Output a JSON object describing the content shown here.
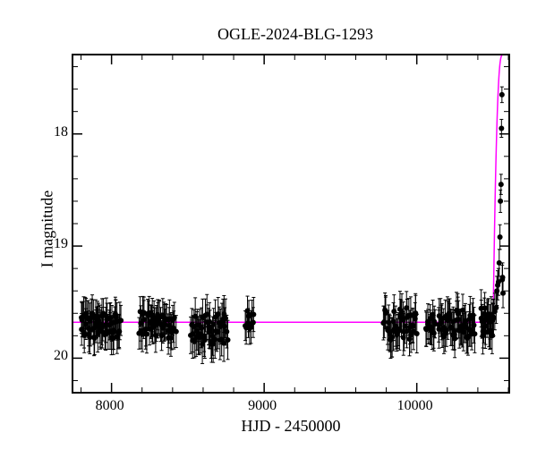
{
  "chart": {
    "type": "scatter-errorbar-with-line",
    "title": "OGLE-2024-BLG-1293",
    "xlabel": "HJD - 2450000",
    "ylabel": "I magnitude",
    "xlim": [
      7750,
      10600
    ],
    "ylim": [
      20.3,
      17.3
    ],
    "xticks": [
      8000,
      9000,
      10000
    ],
    "xtick_minor_step": 200,
    "yticks": [
      18,
      19,
      20
    ],
    "ytick_minor_step": 0.2,
    "background_color": "#ffffff",
    "axis_color": "#000000",
    "tick_fontsize": 16,
    "label_fontsize": 18,
    "title_fontsize": 18,
    "model_line": {
      "color": "#ff00ff",
      "width": 1.5,
      "baseline_mag": 19.68,
      "peak_x": 10560,
      "peak_mag": 17.3,
      "rise_start_x": 10500
    },
    "data_points": {
      "marker_color": "#000000",
      "marker_size": 3,
      "errorbar_color": "#000000",
      "errorbar_width": 1,
      "clusters": [
        {
          "x_start": 7800,
          "x_end": 8060,
          "n": 65,
          "mag_mean": 19.72,
          "mag_scatter": 0.12,
          "err": 0.15
        },
        {
          "x_start": 8180,
          "x_end": 8420,
          "n": 50,
          "mag_mean": 19.7,
          "mag_scatter": 0.12,
          "err": 0.15
        },
        {
          "x_start": 8520,
          "x_end": 8760,
          "n": 50,
          "mag_mean": 19.74,
          "mag_scatter": 0.14,
          "err": 0.16
        },
        {
          "x_start": 8880,
          "x_end": 8930,
          "n": 10,
          "mag_mean": 19.65,
          "mag_scatter": 0.1,
          "err": 0.14
        },
        {
          "x_start": 9780,
          "x_end": 10000,
          "n": 45,
          "mag_mean": 19.7,
          "mag_scatter": 0.15,
          "err": 0.16
        },
        {
          "x_start": 10060,
          "x_end": 10120,
          "n": 15,
          "mag_mean": 19.7,
          "mag_scatter": 0.1,
          "err": 0.14
        },
        {
          "x_start": 10140,
          "x_end": 10380,
          "n": 50,
          "mag_mean": 19.7,
          "mag_scatter": 0.13,
          "err": 0.15
        },
        {
          "x_start": 10420,
          "x_end": 10510,
          "n": 25,
          "mag_mean": 19.68,
          "mag_scatter": 0.13,
          "err": 0.15
        }
      ],
      "event_points": [
        {
          "x": 10520,
          "y": 19.55,
          "err": 0.14
        },
        {
          "x": 10525,
          "y": 19.4,
          "err": 0.13
        },
        {
          "x": 10530,
          "y": 19.35,
          "err": 0.13
        },
        {
          "x": 10535,
          "y": 19.32,
          "err": 0.12
        },
        {
          "x": 10540,
          "y": 19.15,
          "err": 0.12
        },
        {
          "x": 10545,
          "y": 18.92,
          "err": 0.11
        },
        {
          "x": 10548,
          "y": 18.6,
          "err": 0.1
        },
        {
          "x": 10552,
          "y": 18.45,
          "err": 0.09
        },
        {
          "x": 10555,
          "y": 17.95,
          "err": 0.08
        },
        {
          "x": 10558,
          "y": 17.65,
          "err": 0.07
        },
        {
          "x": 10560,
          "y": 19.3,
          "err": 0.13
        },
        {
          "x": 10562,
          "y": 19.28,
          "err": 0.13
        },
        {
          "x": 10565,
          "y": 19.42,
          "err": 0.13
        }
      ]
    }
  }
}
